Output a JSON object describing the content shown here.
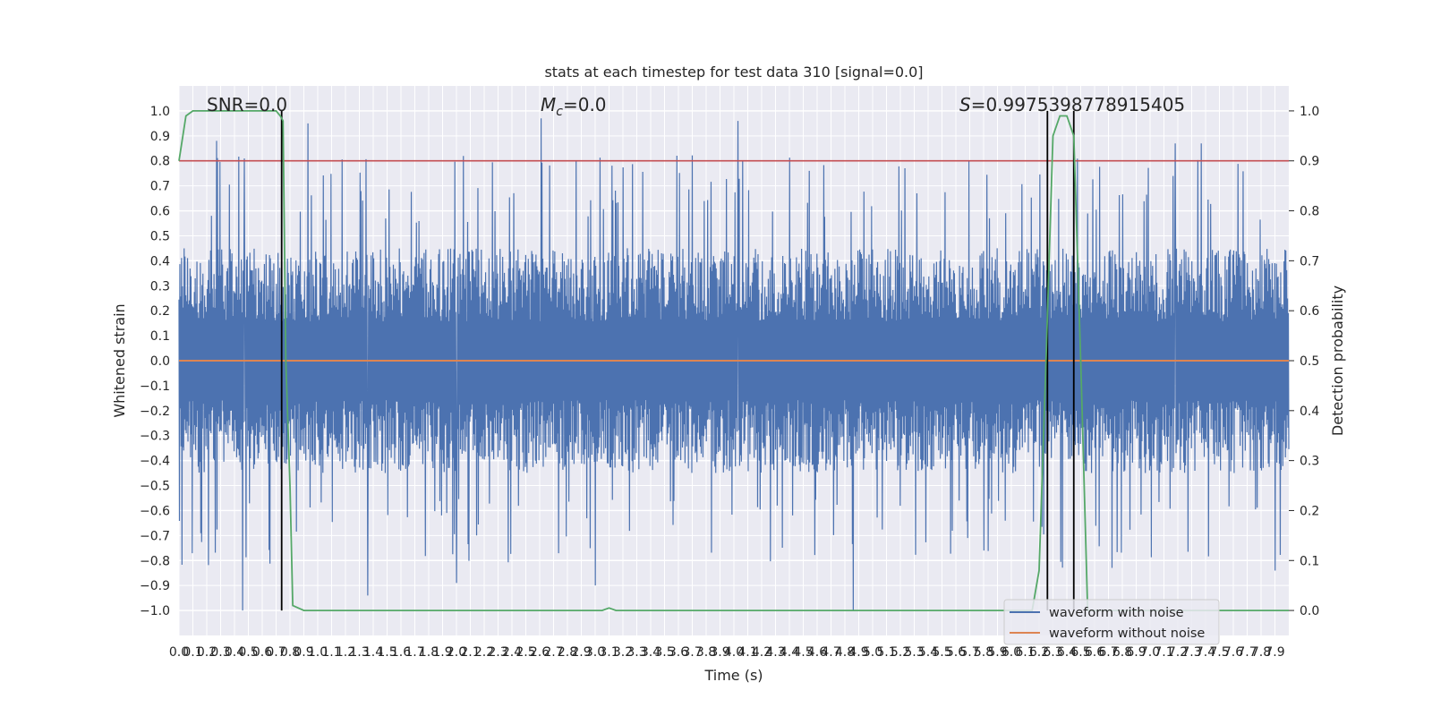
{
  "chart_data": {
    "type": "line",
    "title": "stats at each timestep for test data 310 [signal=0.0]",
    "xlabel": "Time (s)",
    "ylabel": "Whitened strain",
    "y2label": "Detection probability",
    "xlim": [
      0.0,
      8.0
    ],
    "ylim": [
      -1.1,
      1.1
    ],
    "y2lim": [
      -0.05,
      1.05
    ],
    "grid": true,
    "legend_position": "lower-right",
    "x_ticks": [
      "0.0",
      "0.1",
      "0.2",
      "0.3",
      "0.4",
      "0.5",
      "0.6",
      "0.7",
      "0.8",
      "0.9",
      "1.0",
      "1.1",
      "1.2",
      "1.3",
      "1.4",
      "1.5",
      "1.6",
      "1.7",
      "1.8",
      "1.9",
      "2.0",
      "2.1",
      "2.2",
      "2.3",
      "2.4",
      "2.5",
      "2.6",
      "2.7",
      "2.8",
      "2.9",
      "3.0",
      "3.1",
      "3.2",
      "3.3",
      "3.4",
      "3.5",
      "3.6",
      "3.7",
      "3.8",
      "3.9",
      "4.0",
      "4.1",
      "4.2",
      "4.3",
      "4.4",
      "4.5",
      "4.6",
      "4.7",
      "4.8",
      "4.9",
      "5.0",
      "5.1",
      "5.2",
      "5.3",
      "5.4",
      "5.5",
      "5.6",
      "5.7",
      "5.8",
      "5.9",
      "6.0",
      "6.1",
      "6.2",
      "6.3",
      "6.4",
      "6.5",
      "6.6",
      "6.7",
      "6.8",
      "6.9",
      "7.0",
      "7.1",
      "7.2",
      "7.3",
      "7.4",
      "7.5",
      "7.6",
      "7.7",
      "7.8",
      "7.9"
    ],
    "y_ticks": [
      "−1.0",
      "−0.9",
      "−0.8",
      "−0.7",
      "−0.6",
      "−0.5",
      "−0.4",
      "−0.3",
      "−0.2",
      "−0.1",
      "0.0",
      "0.1",
      "0.2",
      "0.3",
      "0.4",
      "0.5",
      "0.6",
      "0.7",
      "0.8",
      "0.9",
      "1.0"
    ],
    "y2_ticks": [
      "0.0",
      "0.1",
      "0.2",
      "0.3",
      "0.4",
      "0.5",
      "0.6",
      "0.7",
      "0.8",
      "0.9",
      "1.0"
    ],
    "annotations": {
      "snr": "SNR=0.0",
      "mc_symbol": "M",
      "mc_sub": "c",
      "mc_value": "=0.0",
      "s_symbol": "S",
      "s_value": "=0.9975398778915405"
    },
    "threshold": 0.9,
    "threshold_color": "#c44e52",
    "event_lines_x": [
      0.74,
      6.26,
      6.45
    ],
    "series": [
      {
        "name": "waveform with noise",
        "color": "#4c72b0",
        "noise_amplitude": 0.45,
        "spikes": [
          [
            0.27,
            0.88
          ],
          [
            0.46,
            -1.0
          ],
          [
            0.47,
            0.81
          ],
          [
            0.93,
            0.95
          ],
          [
            1.36,
            0.8
          ],
          [
            1.36,
            -0.94
          ],
          [
            2.61,
            0.97
          ],
          [
            3.0,
            -0.9
          ],
          [
            4.03,
            0.96
          ],
          [
            4.86,
            -1.0
          ],
          [
            7.18,
            0.87
          ],
          [
            7.37,
            0.87
          ],
          [
            7.9,
            -0.84
          ],
          [
            3.77,
            -0.3
          ],
          [
            2.0,
            -0.89
          ]
        ]
      },
      {
        "name": "waveform without noise",
        "color": "#dd8452",
        "values": [
          0.0,
          0.0
        ]
      },
      {
        "name": "Detection probability",
        "color": "#55a868",
        "axis": "right",
        "x": [
          0.0,
          0.05,
          0.1,
          0.2,
          0.3,
          0.5,
          0.6,
          0.7,
          0.73,
          0.75,
          0.77,
          0.8,
          0.82,
          0.9,
          1.0,
          2.0,
          3.0,
          3.05,
          3.1,
          3.15,
          3.2,
          4.0,
          5.0,
          6.0,
          6.15,
          6.2,
          6.25,
          6.3,
          6.35,
          6.4,
          6.45,
          6.5,
          6.55,
          7.0,
          7.5,
          8.0
        ],
        "y": [
          0.9,
          0.99,
          1.0,
          1.0,
          1.0,
          1.0,
          1.0,
          1.0,
          0.99,
          0.98,
          0.5,
          0.25,
          0.01,
          0.0,
          0.0,
          0.0,
          0.0,
          0.0,
          0.005,
          0.0,
          0.0,
          0.0,
          0.0,
          0.0,
          0.0,
          0.08,
          0.5,
          0.95,
          0.99,
          0.99,
          0.95,
          0.5,
          0.0,
          0.0,
          0.0,
          0.0
        ]
      }
    ]
  }
}
